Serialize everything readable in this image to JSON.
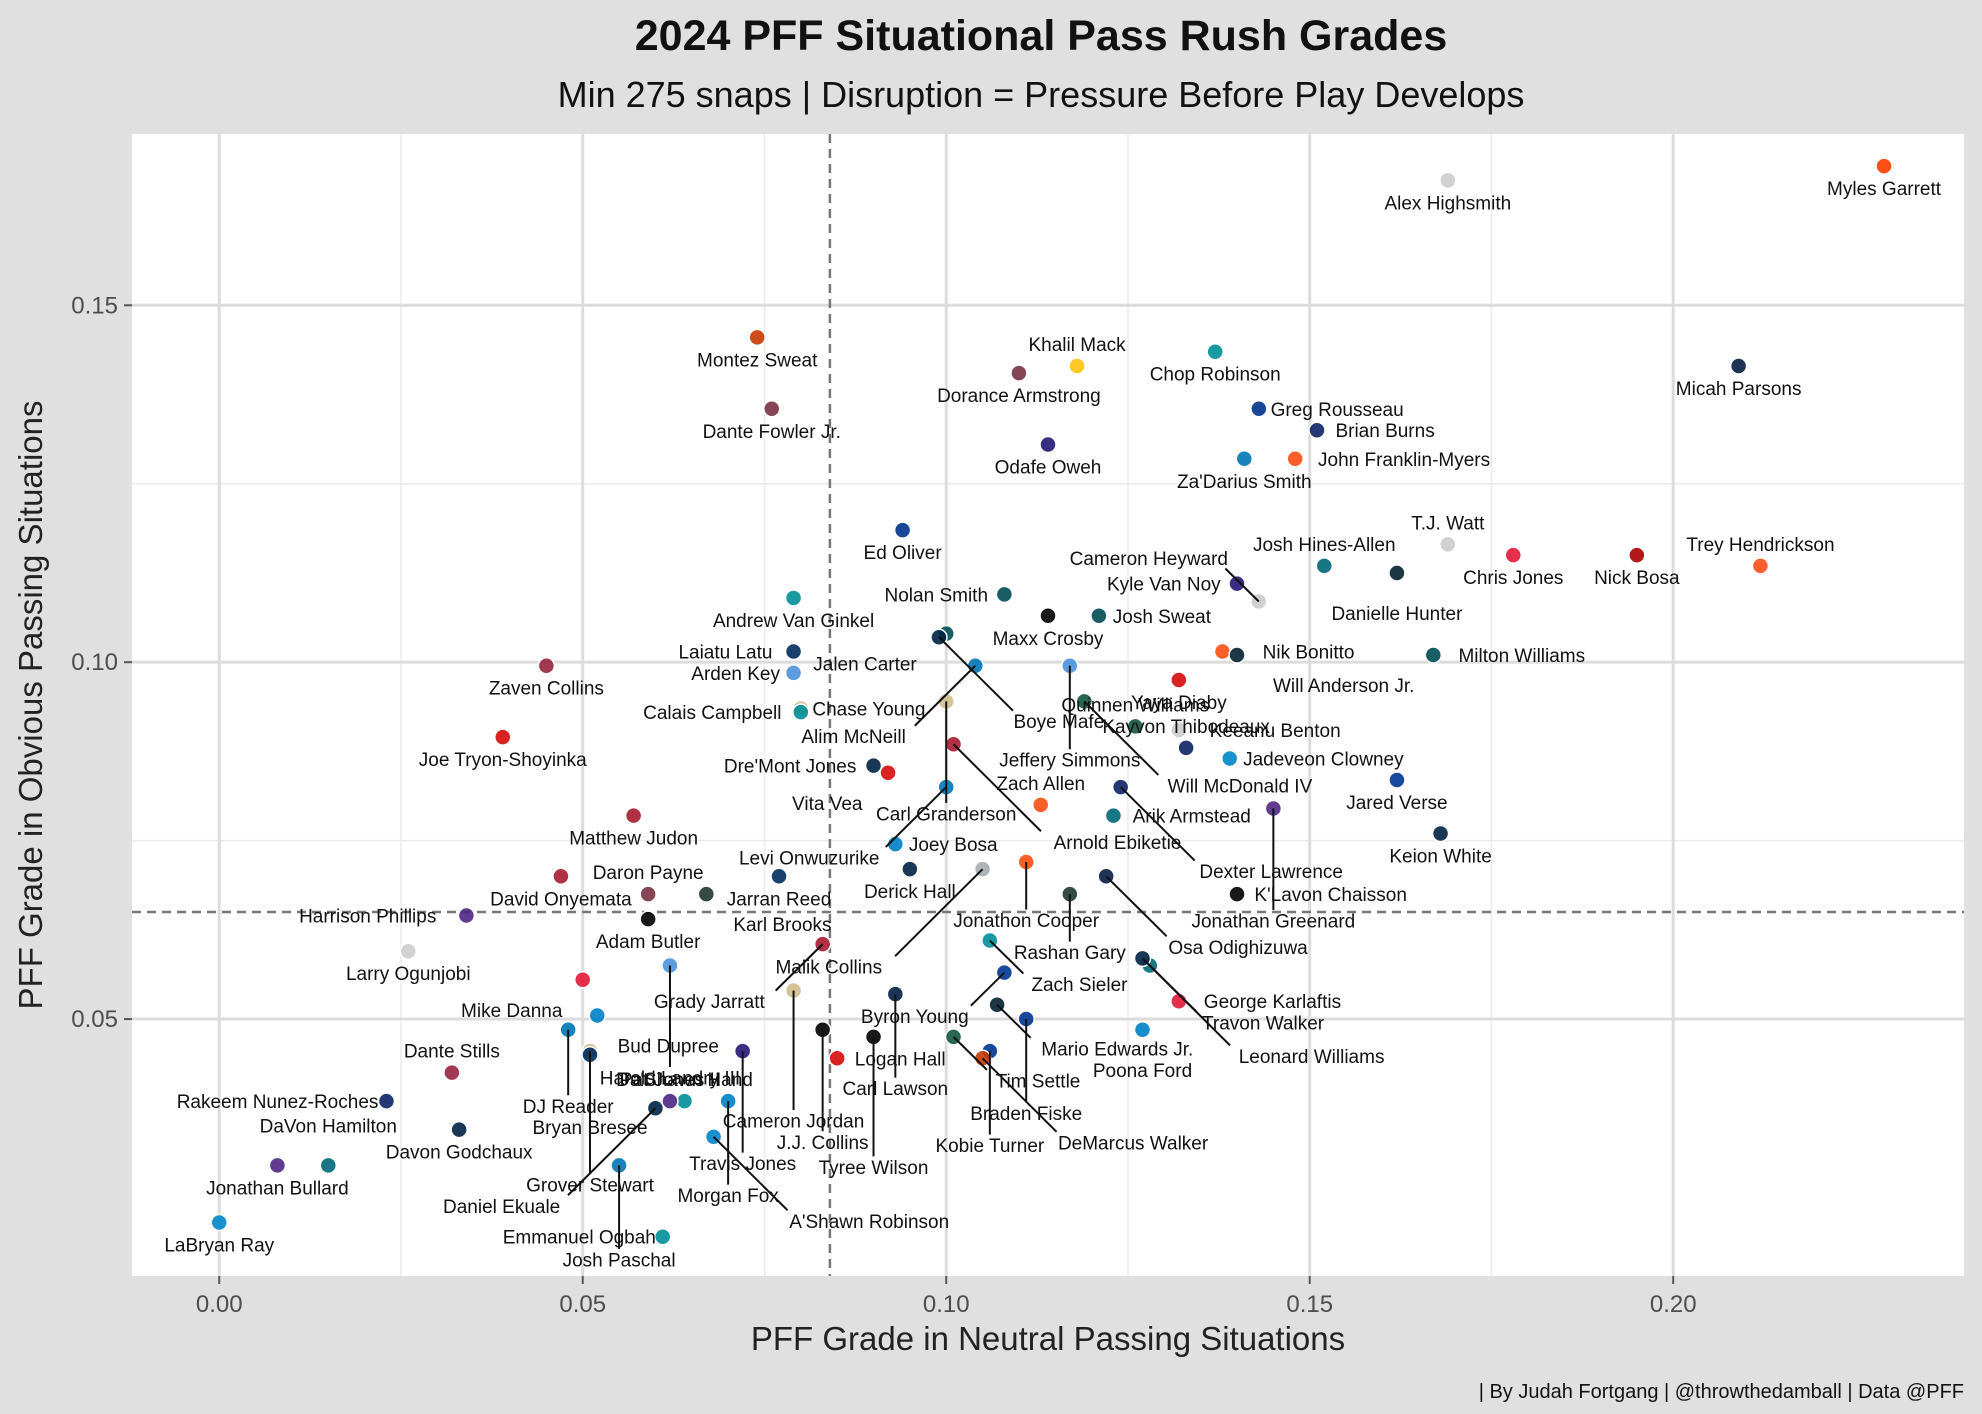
{
  "chart_data": {
    "type": "scatter",
    "title": "2024 PFF Situational Pass Rush Grades",
    "subtitle": "Min 275 snaps | Disruption =  Pressure Before Play Develops",
    "xlabel": "PFF Grade in Neutral Passing Situations",
    "ylabel": "PFF Grade in Obvious Passing Situations",
    "caption": "| By Judah Fortgang | @throwthedamball | Data @PFF",
    "xlim": [
      -0.012,
      0.24
    ],
    "ylim": [
      0.014,
      0.174
    ],
    "x_ticks": [
      0.0,
      0.05,
      0.1,
      0.15,
      0.2
    ],
    "x_tick_labels": [
      "0.00",
      "0.05",
      "0.10",
      "0.15",
      "0.20"
    ],
    "y_ticks": [
      0.05,
      0.1,
      0.15
    ],
    "y_tick_labels": [
      "0.05",
      "0.10",
      "0.15"
    ],
    "x_ref_line": 0.084,
    "y_ref_line": 0.065,
    "grid": true,
    "points": [
      {
        "name": "Myles Garrett",
        "x": 0.229,
        "y": 0.1695,
        "color": "#ff3c00"
      },
      {
        "name": "Alex Highsmith",
        "x": 0.169,
        "y": 0.1675,
        "color": "#cccccc"
      },
      {
        "name": "Micah Parsons",
        "x": 0.209,
        "y": 0.1415,
        "color": "#041e42"
      },
      {
        "name": "Montez Sweat",
        "x": 0.074,
        "y": 0.1455,
        "color": "#c83803"
      },
      {
        "name": "Khalil Mack",
        "x": 0.118,
        "y": 0.1415,
        "color": "#ffc20e"
      },
      {
        "name": "Chop Robinson",
        "x": 0.137,
        "y": 0.1435,
        "color": "#008e97"
      },
      {
        "name": "Dorance Armstrong",
        "x": 0.11,
        "y": 0.1405,
        "color": "#773141"
      },
      {
        "name": "Greg Rousseau",
        "x": 0.143,
        "y": 0.1355,
        "color": "#00338d"
      },
      {
        "name": "Dante Fowler Jr.",
        "x": 0.076,
        "y": 0.1355,
        "color": "#773141"
      },
      {
        "name": "Brian Burns",
        "x": 0.151,
        "y": 0.1325,
        "color": "#0b2265"
      },
      {
        "name": "Odafe Oweh",
        "x": 0.114,
        "y": 0.1305,
        "color": "#241773"
      },
      {
        "name": "Za'Darius Smith",
        "x": 0.141,
        "y": 0.1285,
        "color": "#0076b6"
      },
      {
        "name": "John Franklin-Myers",
        "x": 0.148,
        "y": 0.1285,
        "color": "#fb4f14"
      },
      {
        "name": "T.J. Watt",
        "x": 0.169,
        "y": 0.1165,
        "color": "#cccccc"
      },
      {
        "name": "Ed Oliver",
        "x": 0.094,
        "y": 0.1185,
        "color": "#00338d"
      },
      {
        "name": "Nick Bosa",
        "x": 0.195,
        "y": 0.115,
        "color": "#aa0000"
      },
      {
        "name": "Chris Jones",
        "x": 0.178,
        "y": 0.115,
        "color": "#e31837"
      },
      {
        "name": "Trey Hendrickson",
        "x": 0.212,
        "y": 0.1135,
        "color": "#fb4f14"
      },
      {
        "name": "Josh Hines-Allen",
        "x": 0.152,
        "y": 0.1135,
        "color": "#006778"
      },
      {
        "name": "Kyle Van Noy",
        "x": 0.14,
        "y": 0.111,
        "color": "#241773"
      },
      {
        "name": "Nolan Smith",
        "x": 0.108,
        "y": 0.1095,
        "color": "#004c54"
      },
      {
        "name": "Andrew Van Ginkel",
        "x": 0.079,
        "y": 0.109,
        "color": "#008e97"
      },
      {
        "name": "Danielle Hunter",
        "x": 0.162,
        "y": 0.1125,
        "color": "#03202f"
      },
      {
        "name": "Cameron Heyward",
        "x": 0.143,
        "y": 0.1085,
        "color": "#cccccc"
      },
      {
        "name": "Maxx Crosby",
        "x": 0.114,
        "y": 0.1065,
        "color": "#000000"
      },
      {
        "name": "Josh Sweat",
        "x": 0.121,
        "y": 0.1065,
        "color": "#004c54"
      },
      {
        "name": "Jalen Carter",
        "x": 0.1,
        "y": 0.104,
        "color": "#004c54"
      },
      {
        "name": "Laiatu Latu",
        "x": 0.079,
        "y": 0.1015,
        "color": "#002c5f"
      },
      {
        "name": "Boye Mafe",
        "x": 0.099,
        "y": 0.1035,
        "color": "#002244"
      },
      {
        "name": "Nik Bonitto",
        "x": 0.138,
        "y": 0.1015,
        "color": "#fb4f14"
      },
      {
        "name": "Will Anderson Jr.",
        "x": 0.14,
        "y": 0.101,
        "color": "#03202f"
      },
      {
        "name": "Milton Williams",
        "x": 0.167,
        "y": 0.101,
        "color": "#004c54"
      },
      {
        "name": "Zaven Collins",
        "x": 0.045,
        "y": 0.0995,
        "color": "#97233f"
      },
      {
        "name": "Alim McNeill",
        "x": 0.104,
        "y": 0.0995,
        "color": "#0076b6"
      },
      {
        "name": "Jeffery Simmons",
        "x": 0.117,
        "y": 0.0995,
        "color": "#4b92db"
      },
      {
        "name": "Arden Key",
        "x": 0.079,
        "y": 0.0985,
        "color": "#4b92db"
      },
      {
        "name": "Yaya Diaby",
        "x": 0.132,
        "y": 0.0975,
        "color": "#d50a0a"
      },
      {
        "name": "Chase Young",
        "x": 0.08,
        "y": 0.0935,
        "color": "#d3bc8d"
      },
      {
        "name": "Calais Campbell",
        "x": 0.08,
        "y": 0.093,
        "color": "#008e97"
      },
      {
        "name": "Carl Granderson",
        "x": 0.1,
        "y": 0.0945,
        "color": "#d3bc8d"
      },
      {
        "name": "Will McDonald IV",
        "x": 0.119,
        "y": 0.0945,
        "color": "#125740"
      },
      {
        "name": "Keeanu Benton",
        "x": 0.132,
        "y": 0.0905,
        "color": "#cccccc"
      },
      {
        "name": "Joe Tryon-Shoyinka",
        "x": 0.039,
        "y": 0.0895,
        "color": "#d50a0a"
      },
      {
        "name": "Arnold Ebiketie",
        "x": 0.101,
        "y": 0.0885,
        "color": "#a71930"
      },
      {
        "name": "Quinnen Williams",
        "x": 0.126,
        "y": 0.091,
        "color": "#125740"
      },
      {
        "name": "Kayvon Thibodeaux",
        "x": 0.133,
        "y": 0.088,
        "color": "#0b2265"
      },
      {
        "name": "Dre'Mont Jones",
        "x": 0.09,
        "y": 0.0855,
        "color": "#002244"
      },
      {
        "name": "Vita Vea",
        "x": 0.092,
        "y": 0.0845,
        "color": "#d50a0a"
      },
      {
        "name": "Dexter Lawrence",
        "x": 0.124,
        "y": 0.0825,
        "color": "#0b2265"
      },
      {
        "name": "Jared Verse",
        "x": 0.162,
        "y": 0.0835,
        "color": "#003594"
      },
      {
        "name": "Jadeveon Clowney",
        "x": 0.139,
        "y": 0.0865,
        "color": "#0085ca"
      },
      {
        "name": "Matthew Judon",
        "x": 0.057,
        "y": 0.0785,
        "color": "#a71930"
      },
      {
        "name": "Levi Onwuzurike",
        "x": 0.1,
        "y": 0.0825,
        "color": "#0076b6"
      },
      {
        "name": "Zach Allen",
        "x": 0.113,
        "y": 0.08,
        "color": "#fb4f14"
      },
      {
        "name": "Arik Armstead",
        "x": 0.123,
        "y": 0.0785,
        "color": "#006778"
      },
      {
        "name": "Jonathan Greenard",
        "x": 0.145,
        "y": 0.0795,
        "color": "#4f2683"
      },
      {
        "name": "Keion White",
        "x": 0.168,
        "y": 0.076,
        "color": "#002244"
      },
      {
        "name": "Joey Bosa",
        "x": 0.093,
        "y": 0.0745,
        "color": "#0080c6"
      },
      {
        "name": "Derick Hall",
        "x": 0.095,
        "y": 0.071,
        "color": "#002244"
      },
      {
        "name": "Jonathon Cooper",
        "x": 0.111,
        "y": 0.072,
        "color": "#fb4f14"
      },
      {
        "name": "David Onyemata",
        "x": 0.047,
        "y": 0.07,
        "color": "#a71930"
      },
      {
        "name": "Harrison Phillips",
        "x": 0.034,
        "y": 0.0645,
        "color": "#4f2683"
      },
      {
        "name": "Daron Payne",
        "x": 0.059,
        "y": 0.0675,
        "color": "#773141"
      },
      {
        "name": "Karl Brooks",
        "x": 0.067,
        "y": 0.0675,
        "color": "#203731"
      },
      {
        "name": "Jarran Reed",
        "x": 0.077,
        "y": 0.07,
        "color": "#002c5f"
      },
      {
        "name": "Malik Collins",
        "x": 0.105,
        "y": 0.071,
        "color": "#a5acaf"
      },
      {
        "name": "Rashan Gary",
        "x": 0.117,
        "y": 0.0675,
        "color": "#203731"
      },
      {
        "name": "Osa Odighizuwa",
        "x": 0.122,
        "y": 0.07,
        "color": "#041e42"
      },
      {
        "name": "K'Lavon Chaisson",
        "x": 0.14,
        "y": 0.0675,
        "color": "#000000"
      },
      {
        "name": "Larry Ogunjobi",
        "x": 0.026,
        "y": 0.0595,
        "color": "#cccccc"
      },
      {
        "name": "Adam Butler",
        "x": 0.059,
        "y": 0.064,
        "color": "#000000"
      },
      {
        "name": "Grady Jarratt",
        "x": 0.083,
        "y": 0.0605,
        "color": "#a71930"
      },
      {
        "name": "Zach Sieler",
        "x": 0.106,
        "y": 0.061,
        "color": "#008e97"
      },
      {
        "name": "Travon Walker",
        "x": 0.128,
        "y": 0.0575,
        "color": "#006778"
      },
      {
        "name": "Mike Danna",
        "x": 0.05,
        "y": 0.0555,
        "color": "#e31837"
      },
      {
        "name": "Harold Landry III",
        "x": 0.062,
        "y": 0.0575,
        "color": "#4b92db"
      },
      {
        "name": "Byron Young",
        "x": 0.108,
        "y": 0.0565,
        "color": "#003594"
      },
      {
        "name": "Cameron Jordan",
        "x": 0.079,
        "y": 0.054,
        "color": "#d3bc8d"
      },
      {
        "name": "Carl Lawson",
        "x": 0.093,
        "y": 0.0535,
        "color": "#041e42"
      },
      {
        "name": "George Karlaftis",
        "x": 0.132,
        "y": 0.0525,
        "color": "#e31837"
      },
      {
        "name": "Mario Edwards Jr.",
        "x": 0.107,
        "y": 0.052,
        "color": "#03202f"
      },
      {
        "name": "Bud Dupree",
        "x": 0.052,
        "y": 0.0505,
        "color": "#0080c6"
      },
      {
        "name": "DJ Reader",
        "x": 0.048,
        "y": 0.0485,
        "color": "#0076b6"
      },
      {
        "name": "J.J. Collins",
        "x": 0.083,
        "y": 0.0485,
        "color": "#000000"
      },
      {
        "name": "Tim Settle",
        "x": 0.101,
        "y": 0.0475,
        "color": "#125740"
      },
      {
        "name": "Braden Fiske",
        "x": 0.111,
        "y": 0.05,
        "color": "#003594"
      },
      {
        "name": "Leonard Williams",
        "x": 0.127,
        "y": 0.0585,
        "color": "#002244"
      },
      {
        "name": "Poona Ford",
        "x": 0.127,
        "y": 0.0485,
        "color": "#0080c6"
      },
      {
        "name": "Travis Jones",
        "x": 0.072,
        "y": 0.0455,
        "color": "#241773"
      },
      {
        "name": "Tyree Wilson",
        "x": 0.09,
        "y": 0.0475,
        "color": "#000000"
      },
      {
        "name": "Logan Hall",
        "x": 0.085,
        "y": 0.0445,
        "color": "#d50a0a"
      },
      {
        "name": "Kobie Turner",
        "x": 0.106,
        "y": 0.0455,
        "color": "#003594"
      },
      {
        "name": "DeMarcus Walker",
        "x": 0.105,
        "y": 0.0445,
        "color": "#c83803"
      },
      {
        "name": "Dante Stills",
        "x": 0.032,
        "y": 0.0425,
        "color": "#97233f"
      },
      {
        "name": "Bryan Bresee",
        "x": 0.051,
        "y": 0.0455,
        "color": "#d3bc8d"
      },
      {
        "name": "Grover Stewart",
        "x": 0.051,
        "y": 0.045,
        "color": "#002c5f"
      },
      {
        "name": "Rakeem Nunez-Roches",
        "x": 0.023,
        "y": 0.0385,
        "color": "#0b2265"
      },
      {
        "name": "Morgan Fox",
        "x": 0.07,
        "y": 0.0385,
        "color": "#0080c6"
      },
      {
        "name": "Da'Shawn Hand",
        "x": 0.064,
        "y": 0.0385,
        "color": "#008e97"
      },
      {
        "name": "Jonathan Bullard",
        "x": 0.008,
        "y": 0.0295,
        "color": "#4f2683"
      },
      {
        "name": "Davon Godchaux",
        "x": 0.033,
        "y": 0.0345,
        "color": "#002244"
      },
      {
        "name": "DaVon Hamilton",
        "x": 0.015,
        "y": 0.0295,
        "color": "#006778"
      },
      {
        "name": "Daniel Ekuale",
        "x": 0.06,
        "y": 0.0375,
        "color": "#002244"
      },
      {
        "name": "Pat Jones II",
        "x": 0.062,
        "y": 0.0385,
        "color": "#4f2683"
      },
      {
        "name": "A'Shawn Robinson",
        "x": 0.068,
        "y": 0.0335,
        "color": "#0085ca"
      },
      {
        "name": "Josh Paschal",
        "x": 0.055,
        "y": 0.0295,
        "color": "#0076b6"
      },
      {
        "name": "LaBryan Ray",
        "x": 0.0,
        "y": 0.0215,
        "color": "#0085ca"
      },
      {
        "name": "Emmanuel Ogbah",
        "x": 0.061,
        "y": 0.0195,
        "color": "#008e97"
      }
    ]
  }
}
